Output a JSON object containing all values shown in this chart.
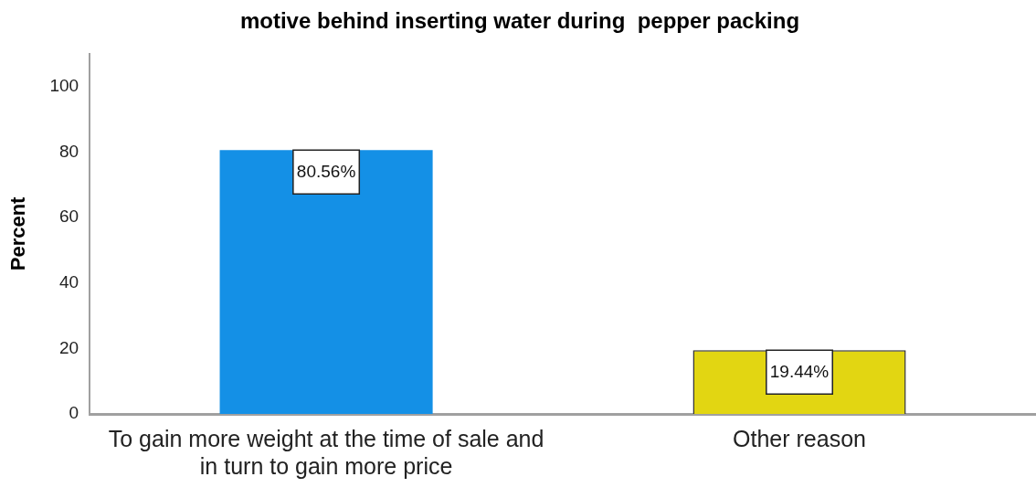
{
  "chart_data": {
    "type": "bar",
    "title": "motive behind inserting water during  pepper packing",
    "ylabel": "Percent",
    "categories": [
      "To gain more weight at the time of sale and in turn to gain more price",
      "Other reason"
    ],
    "values": [
      80.56,
      19.44
    ],
    "colors": [
      "#1490e6",
      "#e2d612"
    ],
    "value_labels": [
      "80.56%",
      "19.44%"
    ],
    "ylim": [
      0,
      110
    ],
    "yticks": [
      0,
      20,
      40,
      60,
      80,
      100
    ],
    "grid": false,
    "legend": false
  }
}
